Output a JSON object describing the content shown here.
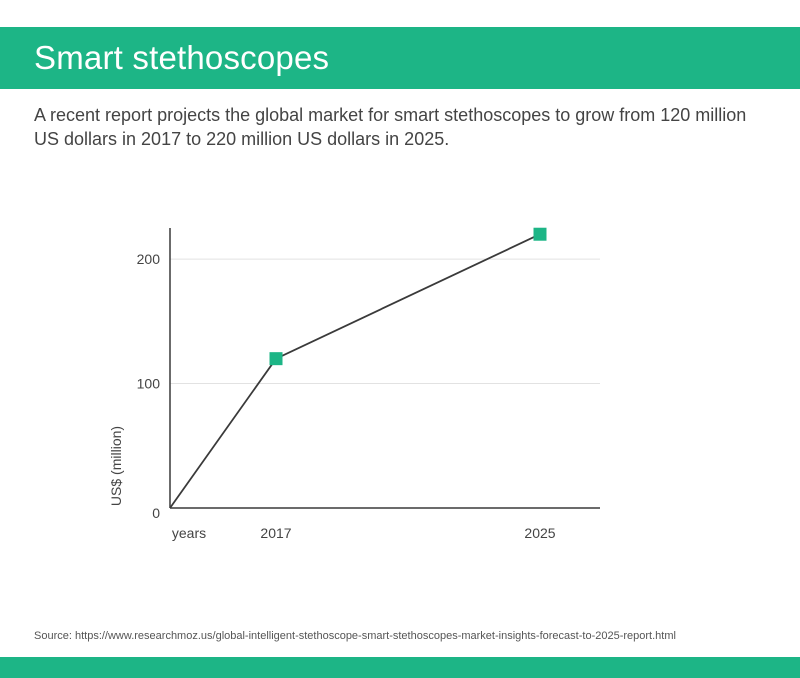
{
  "header": {
    "title": "Smart stethoscopes"
  },
  "description": "A recent report projects the global market for smart stethoscopes to grow from 120 million US dollars in 2017 to 220 million US dollars in 2025.",
  "footer": {
    "source": "Source: https://www.researchmoz.us/global-intelligent-stethoscope-smart-stethoscopes-market-insights-forecast-to-2025-report.html"
  },
  "colors": {
    "accent": "#1db586",
    "line": "#3a3a3a",
    "grid": "#e2e2e2"
  },
  "chart_data": {
    "type": "line",
    "title": "",
    "xlabel": "years",
    "ylabel": "US$ (million)",
    "y_ticks": [
      0,
      100,
      200
    ],
    "ylim": [
      0,
      225
    ],
    "grid": true,
    "categories": [
      "",
      "2017",
      "2025"
    ],
    "x_tick_labels": [
      "2017",
      "2025"
    ],
    "series": [
      {
        "values": [
          0,
          120,
          220
        ]
      }
    ]
  }
}
